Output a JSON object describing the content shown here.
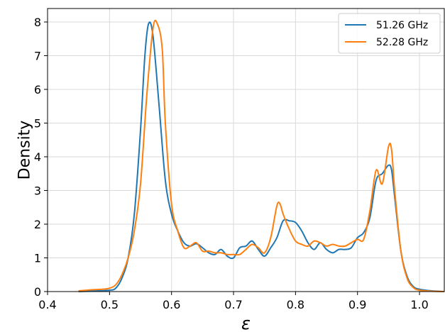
{
  "chart_data": {
    "type": "line",
    "title": "",
    "xlabel": "ε",
    "ylabel": "Density",
    "xlim": [
      0.4,
      1.04
    ],
    "ylim": [
      0,
      8.4
    ],
    "xticks": [
      0.4,
      0.5,
      0.6,
      0.7,
      0.8,
      0.9,
      1.0
    ],
    "xtick_labels": [
      "0.4",
      "0.5",
      "0.6",
      "0.7",
      "0.8",
      "0.9",
      "1.0"
    ],
    "yticks": [
      0,
      1,
      2,
      3,
      4,
      5,
      6,
      7,
      8
    ],
    "ytick_labels": [
      "0",
      "1",
      "2",
      "3",
      "4",
      "5",
      "6",
      "7",
      "8"
    ],
    "grid": true,
    "legend_position": "top-right",
    "series": [
      {
        "name": "51.26 GHz",
        "color": "#1f77b4",
        "points": [
          [
            0.45,
            0.0
          ],
          [
            0.48,
            0.02
          ],
          [
            0.5,
            0.04
          ],
          [
            0.51,
            0.1
          ],
          [
            0.52,
            0.4
          ],
          [
            0.53,
            1.0
          ],
          [
            0.54,
            2.3
          ],
          [
            0.55,
            4.8
          ],
          [
            0.557,
            7.0
          ],
          [
            0.563,
            7.95
          ],
          [
            0.57,
            7.6
          ],
          [
            0.58,
            5.5
          ],
          [
            0.59,
            3.3
          ],
          [
            0.6,
            2.3
          ],
          [
            0.61,
            1.8
          ],
          [
            0.62,
            1.45
          ],
          [
            0.63,
            1.35
          ],
          [
            0.64,
            1.42
          ],
          [
            0.65,
            1.3
          ],
          [
            0.66,
            1.15
          ],
          [
            0.67,
            1.1
          ],
          [
            0.68,
            1.25
          ],
          [
            0.69,
            1.05
          ],
          [
            0.7,
            1.0
          ],
          [
            0.71,
            1.3
          ],
          [
            0.72,
            1.35
          ],
          [
            0.73,
            1.5
          ],
          [
            0.74,
            1.25
          ],
          [
            0.75,
            1.05
          ],
          [
            0.76,
            1.3
          ],
          [
            0.77,
            1.6
          ],
          [
            0.78,
            2.1
          ],
          [
            0.79,
            2.1
          ],
          [
            0.8,
            2.05
          ],
          [
            0.81,
            1.8
          ],
          [
            0.82,
            1.45
          ],
          [
            0.83,
            1.25
          ],
          [
            0.84,
            1.45
          ],
          [
            0.85,
            1.25
          ],
          [
            0.86,
            1.15
          ],
          [
            0.87,
            1.25
          ],
          [
            0.88,
            1.25
          ],
          [
            0.89,
            1.3
          ],
          [
            0.9,
            1.6
          ],
          [
            0.91,
            1.75
          ],
          [
            0.92,
            2.2
          ],
          [
            0.93,
            3.3
          ],
          [
            0.94,
            3.5
          ],
          [
            0.95,
            3.75
          ],
          [
            0.955,
            3.6
          ],
          [
            0.96,
            2.8
          ],
          [
            0.97,
            1.2
          ],
          [
            0.98,
            0.45
          ],
          [
            0.99,
            0.15
          ],
          [
            1.0,
            0.07
          ],
          [
            1.02,
            0.02
          ],
          [
            1.04,
            0.0
          ]
        ]
      },
      {
        "name": "52.28 GHz",
        "color": "#ff7f0e",
        "points": [
          [
            0.45,
            0.02
          ],
          [
            0.47,
            0.05
          ],
          [
            0.49,
            0.07
          ],
          [
            0.5,
            0.1
          ],
          [
            0.51,
            0.2
          ],
          [
            0.52,
            0.5
          ],
          [
            0.53,
            1.0
          ],
          [
            0.54,
            1.8
          ],
          [
            0.55,
            3.2
          ],
          [
            0.56,
            5.8
          ],
          [
            0.57,
            7.8
          ],
          [
            0.577,
            7.95
          ],
          [
            0.585,
            7.2
          ],
          [
            0.59,
            5.0
          ],
          [
            0.6,
            2.6
          ],
          [
            0.61,
            1.8
          ],
          [
            0.62,
            1.3
          ],
          [
            0.63,
            1.35
          ],
          [
            0.64,
            1.45
          ],
          [
            0.65,
            1.2
          ],
          [
            0.66,
            1.2
          ],
          [
            0.67,
            1.15
          ],
          [
            0.68,
            1.15
          ],
          [
            0.69,
            1.1
          ],
          [
            0.7,
            1.1
          ],
          [
            0.71,
            1.1
          ],
          [
            0.72,
            1.25
          ],
          [
            0.73,
            1.4
          ],
          [
            0.74,
            1.3
          ],
          [
            0.75,
            1.15
          ],
          [
            0.76,
            1.6
          ],
          [
            0.77,
            2.55
          ],
          [
            0.775,
            2.6
          ],
          [
            0.78,
            2.3
          ],
          [
            0.79,
            1.85
          ],
          [
            0.8,
            1.5
          ],
          [
            0.81,
            1.4
          ],
          [
            0.82,
            1.35
          ],
          [
            0.83,
            1.5
          ],
          [
            0.84,
            1.45
          ],
          [
            0.85,
            1.35
          ],
          [
            0.86,
            1.4
          ],
          [
            0.87,
            1.35
          ],
          [
            0.88,
            1.35
          ],
          [
            0.89,
            1.45
          ],
          [
            0.9,
            1.55
          ],
          [
            0.91,
            1.55
          ],
          [
            0.92,
            2.4
          ],
          [
            0.93,
            3.6
          ],
          [
            0.94,
            3.2
          ],
          [
            0.95,
            4.3
          ],
          [
            0.955,
            4.2
          ],
          [
            0.96,
            3.0
          ],
          [
            0.97,
            1.2
          ],
          [
            0.98,
            0.4
          ],
          [
            0.99,
            0.12
          ],
          [
            1.0,
            0.04
          ],
          [
            1.02,
            0.01
          ],
          [
            1.04,
            0.0
          ]
        ]
      }
    ]
  }
}
